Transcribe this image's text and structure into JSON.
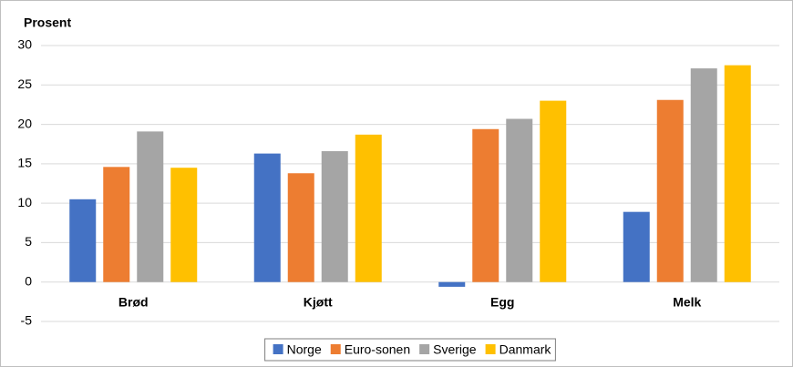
{
  "chart_data": {
    "type": "bar",
    "y_label": "Prosent",
    "categories": [
      "Brød",
      "Kjøtt",
      "Egg",
      "Melk"
    ],
    "series": [
      {
        "name": "Norge",
        "color": "#4472c4",
        "values": [
          10.5,
          16.3,
          -0.6,
          8.9
        ]
      },
      {
        "name": "Euro-sonen",
        "color": "#ed7d31",
        "values": [
          14.6,
          13.8,
          19.4,
          23.1
        ]
      },
      {
        "name": "Sverige",
        "color": "#a5a5a5",
        "values": [
          19.1,
          16.6,
          20.7,
          27.1
        ]
      },
      {
        "name": "Danmark",
        "color": "#ffc000",
        "values": [
          14.5,
          18.7,
          23.0,
          27.5
        ]
      }
    ],
    "ylim": [
      -5,
      30
    ],
    "yticks": [
      -5,
      0,
      5,
      10,
      15,
      20,
      25,
      30
    ],
    "grid": true,
    "legend": "bottom"
  }
}
